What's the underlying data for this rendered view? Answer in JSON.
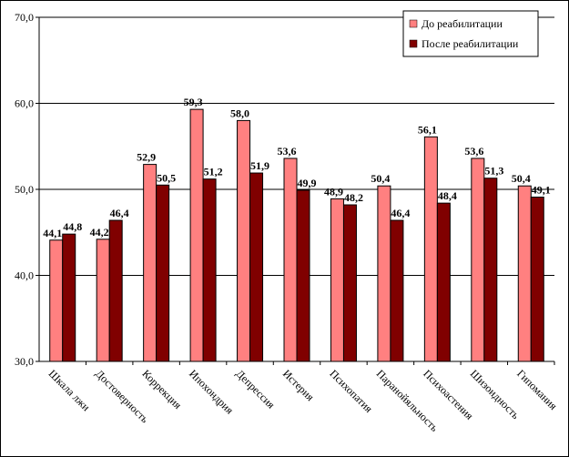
{
  "chart_data": {
    "type": "bar",
    "categories": [
      "Шкала лжи",
      "Достоверность",
      "Коррекция",
      "Ипохондрия",
      "Депрессия",
      "Истерия",
      "Психопатия",
      "Паранойяльность",
      "Психоастения",
      "Шизоидность",
      "Гипомания"
    ],
    "series": [
      {
        "name": "До реабилитации",
        "color": "#FF8080",
        "values": [
          44.1,
          44.2,
          52.9,
          59.3,
          58.0,
          53.6,
          48.9,
          50.4,
          56.1,
          53.6,
          50.4
        ],
        "labels": [
          "44,1",
          "44,2",
          "52,9",
          "59,3",
          "58,0",
          "53,6",
          "48,9",
          "50,4",
          "56,1",
          "53,6",
          "50,4"
        ]
      },
      {
        "name": "После реабилитации",
        "color": "#800000",
        "values": [
          44.8,
          46.4,
          50.5,
          51.2,
          51.9,
          49.9,
          48.2,
          46.4,
          48.4,
          51.3,
          49.1
        ],
        "labels": [
          "44,8",
          "46,4",
          "50,5",
          "51,2",
          "51,9",
          "49,9",
          "48,2",
          "46,4",
          "48,4",
          "51,3",
          "49,1"
        ]
      }
    ],
    "ylim": [
      30,
      70
    ],
    "yticks": [
      30,
      40,
      50,
      60,
      70
    ],
    "ytick_labels": [
      "30,0",
      "40,0",
      "50,0",
      "60,0",
      "70,0"
    ],
    "grid": true,
    "legend_position": "top-right",
    "title": "",
    "xlabel": "",
    "ylabel": ""
  }
}
